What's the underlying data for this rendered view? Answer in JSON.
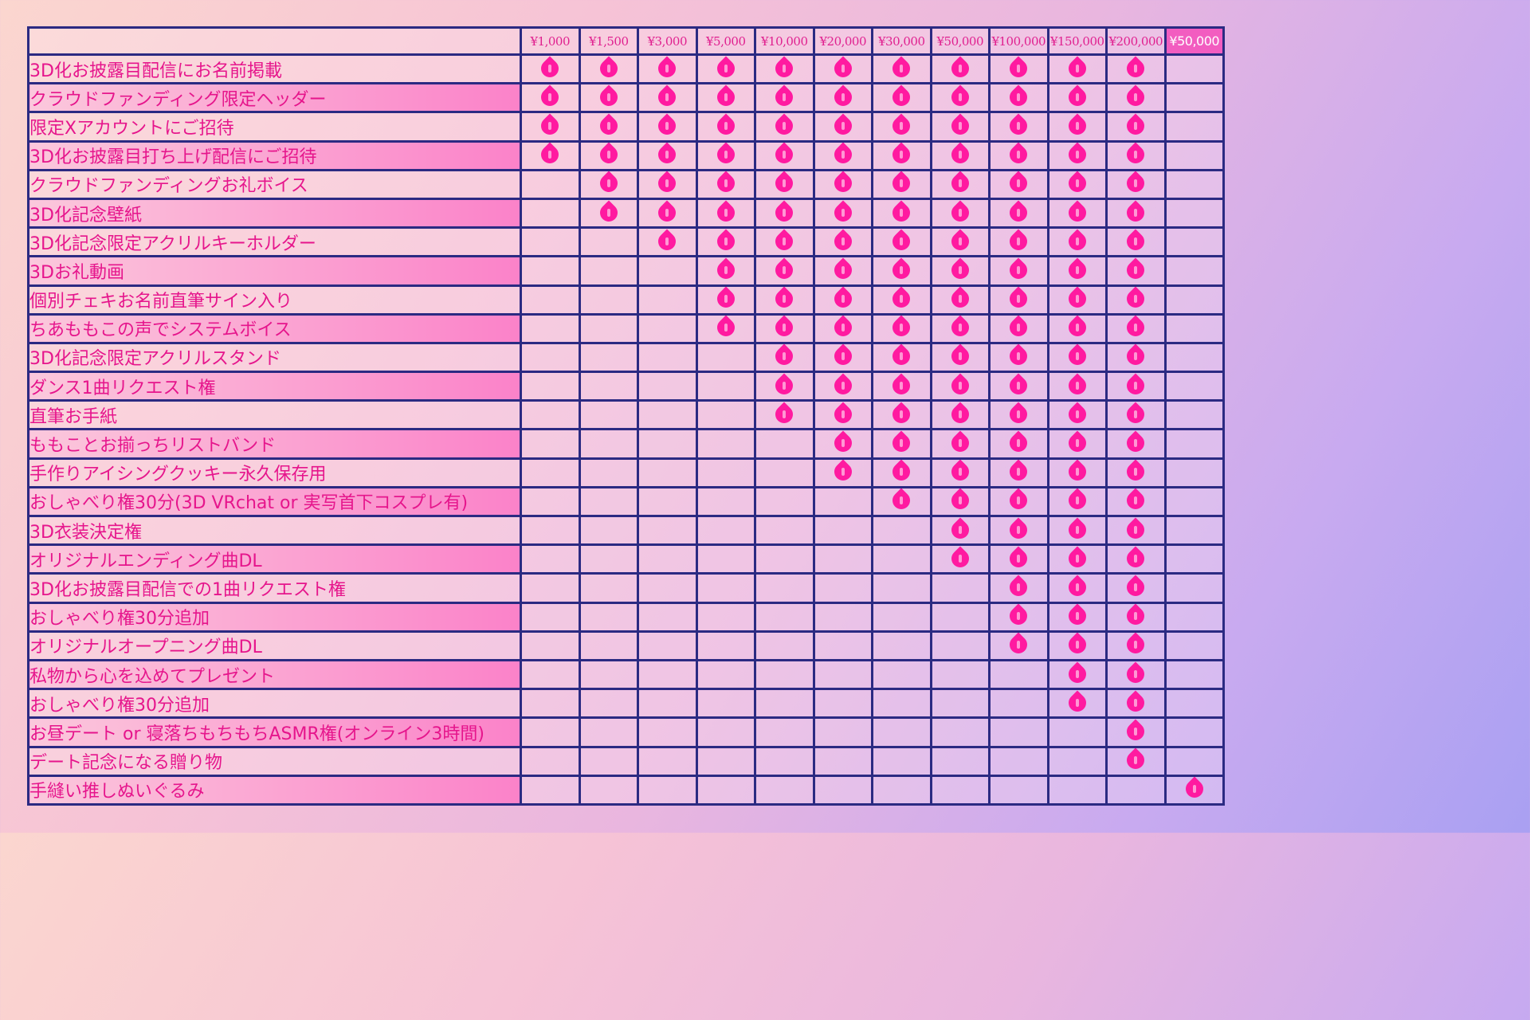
{
  "tiers": [
    "¥1,000",
    "¥1,500",
    "¥3,000",
    "¥5,000",
    "¥10,000",
    "¥20,000",
    "¥30,000",
    "¥50,000",
    "¥100,000",
    "¥150,000",
    "¥200,000",
    "¥50,000"
  ],
  "special_tier_index": 11,
  "icon": "peach-icon",
  "colors": {
    "border": "#2b2a82",
    "text": "#e6158c",
    "peach": "#ff1aa0",
    "special_header": "#f25dc0"
  },
  "rewards": [
    {
      "label": "3D化お披露目配信にお名前掲載",
      "tiers": [
        1,
        1,
        1,
        1,
        1,
        1,
        1,
        1,
        1,
        1,
        1,
        0
      ]
    },
    {
      "label": "クラウドファンディング限定ヘッダー",
      "tiers": [
        1,
        1,
        1,
        1,
        1,
        1,
        1,
        1,
        1,
        1,
        1,
        0
      ]
    },
    {
      "label": "限定Xアカウントにご招待",
      "tiers": [
        1,
        1,
        1,
        1,
        1,
        1,
        1,
        1,
        1,
        1,
        1,
        0
      ]
    },
    {
      "label": "3D化お披露目打ち上げ配信にご招待",
      "tiers": [
        1,
        1,
        1,
        1,
        1,
        1,
        1,
        1,
        1,
        1,
        1,
        0
      ]
    },
    {
      "label": "クラウドファンディングお礼ボイス",
      "tiers": [
        0,
        1,
        1,
        1,
        1,
        1,
        1,
        1,
        1,
        1,
        1,
        0
      ]
    },
    {
      "label": "3D化記念壁紙",
      "tiers": [
        0,
        1,
        1,
        1,
        1,
        1,
        1,
        1,
        1,
        1,
        1,
        0
      ]
    },
    {
      "label": "3D化記念限定アクリルキーホルダー",
      "tiers": [
        0,
        0,
        1,
        1,
        1,
        1,
        1,
        1,
        1,
        1,
        1,
        0
      ]
    },
    {
      "label": "3Dお礼動画",
      "tiers": [
        0,
        0,
        0,
        1,
        1,
        1,
        1,
        1,
        1,
        1,
        1,
        0
      ]
    },
    {
      "label": "個別チェキお名前直筆サイン入り",
      "tiers": [
        0,
        0,
        0,
        1,
        1,
        1,
        1,
        1,
        1,
        1,
        1,
        0
      ]
    },
    {
      "label": "ちあももこの声でシステムボイス",
      "tiers": [
        0,
        0,
        0,
        1,
        1,
        1,
        1,
        1,
        1,
        1,
        1,
        0
      ]
    },
    {
      "label": "3D化記念限定アクリルスタンド",
      "tiers": [
        0,
        0,
        0,
        0,
        1,
        1,
        1,
        1,
        1,
        1,
        1,
        0
      ]
    },
    {
      "label": "ダンス1曲リクエスト権",
      "tiers": [
        0,
        0,
        0,
        0,
        1,
        1,
        1,
        1,
        1,
        1,
        1,
        0
      ]
    },
    {
      "label": "直筆お手紙",
      "tiers": [
        0,
        0,
        0,
        0,
        1,
        1,
        1,
        1,
        1,
        1,
        1,
        0
      ]
    },
    {
      "label": "ももことお揃っちリストバンド",
      "tiers": [
        0,
        0,
        0,
        0,
        0,
        1,
        1,
        1,
        1,
        1,
        1,
        0
      ]
    },
    {
      "label": "手作りアイシングクッキー永久保存用",
      "tiers": [
        0,
        0,
        0,
        0,
        0,
        1,
        1,
        1,
        1,
        1,
        1,
        0
      ]
    },
    {
      "label": "おしゃべり権30分(3D VRchat or 実写首下コスプレ有)",
      "tiers": [
        0,
        0,
        0,
        0,
        0,
        0,
        1,
        1,
        1,
        1,
        1,
        0
      ]
    },
    {
      "label": "3D衣装決定権",
      "tiers": [
        0,
        0,
        0,
        0,
        0,
        0,
        0,
        1,
        1,
        1,
        1,
        0
      ]
    },
    {
      "label": "オリジナルエンディング曲DL",
      "tiers": [
        0,
        0,
        0,
        0,
        0,
        0,
        0,
        1,
        1,
        1,
        1,
        0
      ]
    },
    {
      "label": "3D化お披露目配信での1曲リクエスト権",
      "tiers": [
        0,
        0,
        0,
        0,
        0,
        0,
        0,
        0,
        1,
        1,
        1,
        0
      ]
    },
    {
      "label": "おしゃべり権30分追加",
      "tiers": [
        0,
        0,
        0,
        0,
        0,
        0,
        0,
        0,
        1,
        1,
        1,
        0
      ]
    },
    {
      "label": "オリジナルオープニング曲DL",
      "tiers": [
        0,
        0,
        0,
        0,
        0,
        0,
        0,
        0,
        1,
        1,
        1,
        0
      ]
    },
    {
      "label": "私物から心を込めてプレゼント",
      "tiers": [
        0,
        0,
        0,
        0,
        0,
        0,
        0,
        0,
        0,
        1,
        1,
        0
      ]
    },
    {
      "label": "おしゃべり権30分追加",
      "tiers": [
        0,
        0,
        0,
        0,
        0,
        0,
        0,
        0,
        0,
        1,
        1,
        0
      ]
    },
    {
      "label": "お昼デート or 寝落ちもちもちASMR権(オンライン3時間)",
      "tiers": [
        0,
        0,
        0,
        0,
        0,
        0,
        0,
        0,
        0,
        0,
        1,
        0
      ]
    },
    {
      "label": "デート記念になる贈り物",
      "tiers": [
        0,
        0,
        0,
        0,
        0,
        0,
        0,
        0,
        0,
        0,
        1,
        0
      ]
    },
    {
      "label": "手縫い推しぬいぐるみ",
      "tiers": [
        0,
        0,
        0,
        0,
        0,
        0,
        0,
        0,
        0,
        0,
        0,
        1
      ]
    }
  ]
}
